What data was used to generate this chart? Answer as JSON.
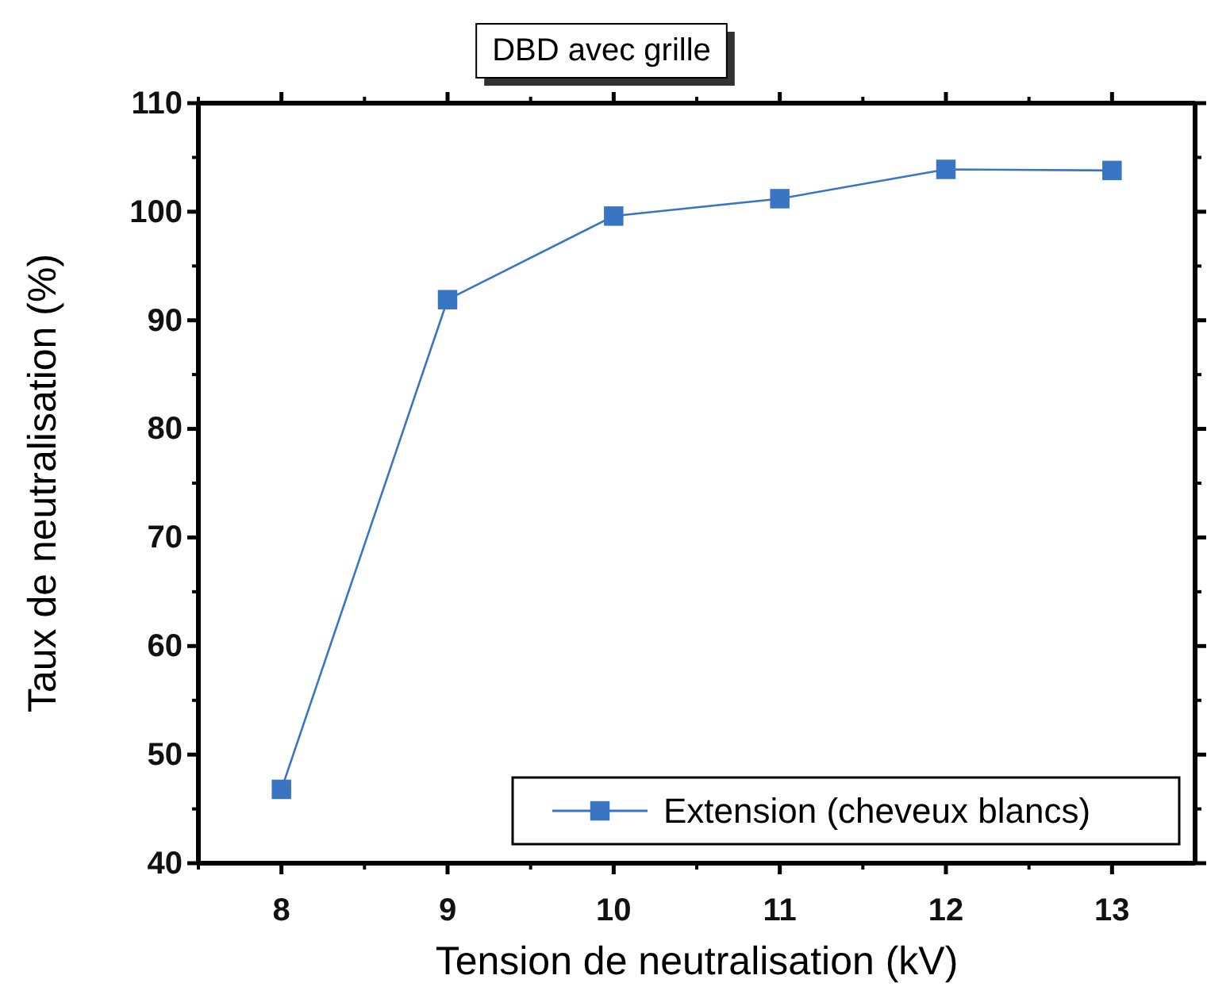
{
  "chart_data": {
    "type": "line",
    "title": "DBD avec grille",
    "xlabel": "Tension de neutralisation (kV)",
    "ylabel": "Taux de neutralisation (%)",
    "x": [
      8,
      9,
      10,
      11,
      12,
      13
    ],
    "series": [
      {
        "name": "Extension (cheveux blancs)",
        "color": "#3a75c4",
        "values": [
          46.8,
          91.9,
          99.6,
          101.2,
          103.9,
          103.8
        ]
      }
    ],
    "xlim": [
      7.5,
      13.5
    ],
    "xticks": [
      8,
      9,
      10,
      11,
      12,
      13
    ],
    "ylim": [
      40,
      110
    ],
    "yticks": [
      40,
      50,
      60,
      70,
      80,
      90,
      100,
      110
    ],
    "marker": "square",
    "line_style": "solid",
    "legend": "bottom right",
    "grid": false
  }
}
